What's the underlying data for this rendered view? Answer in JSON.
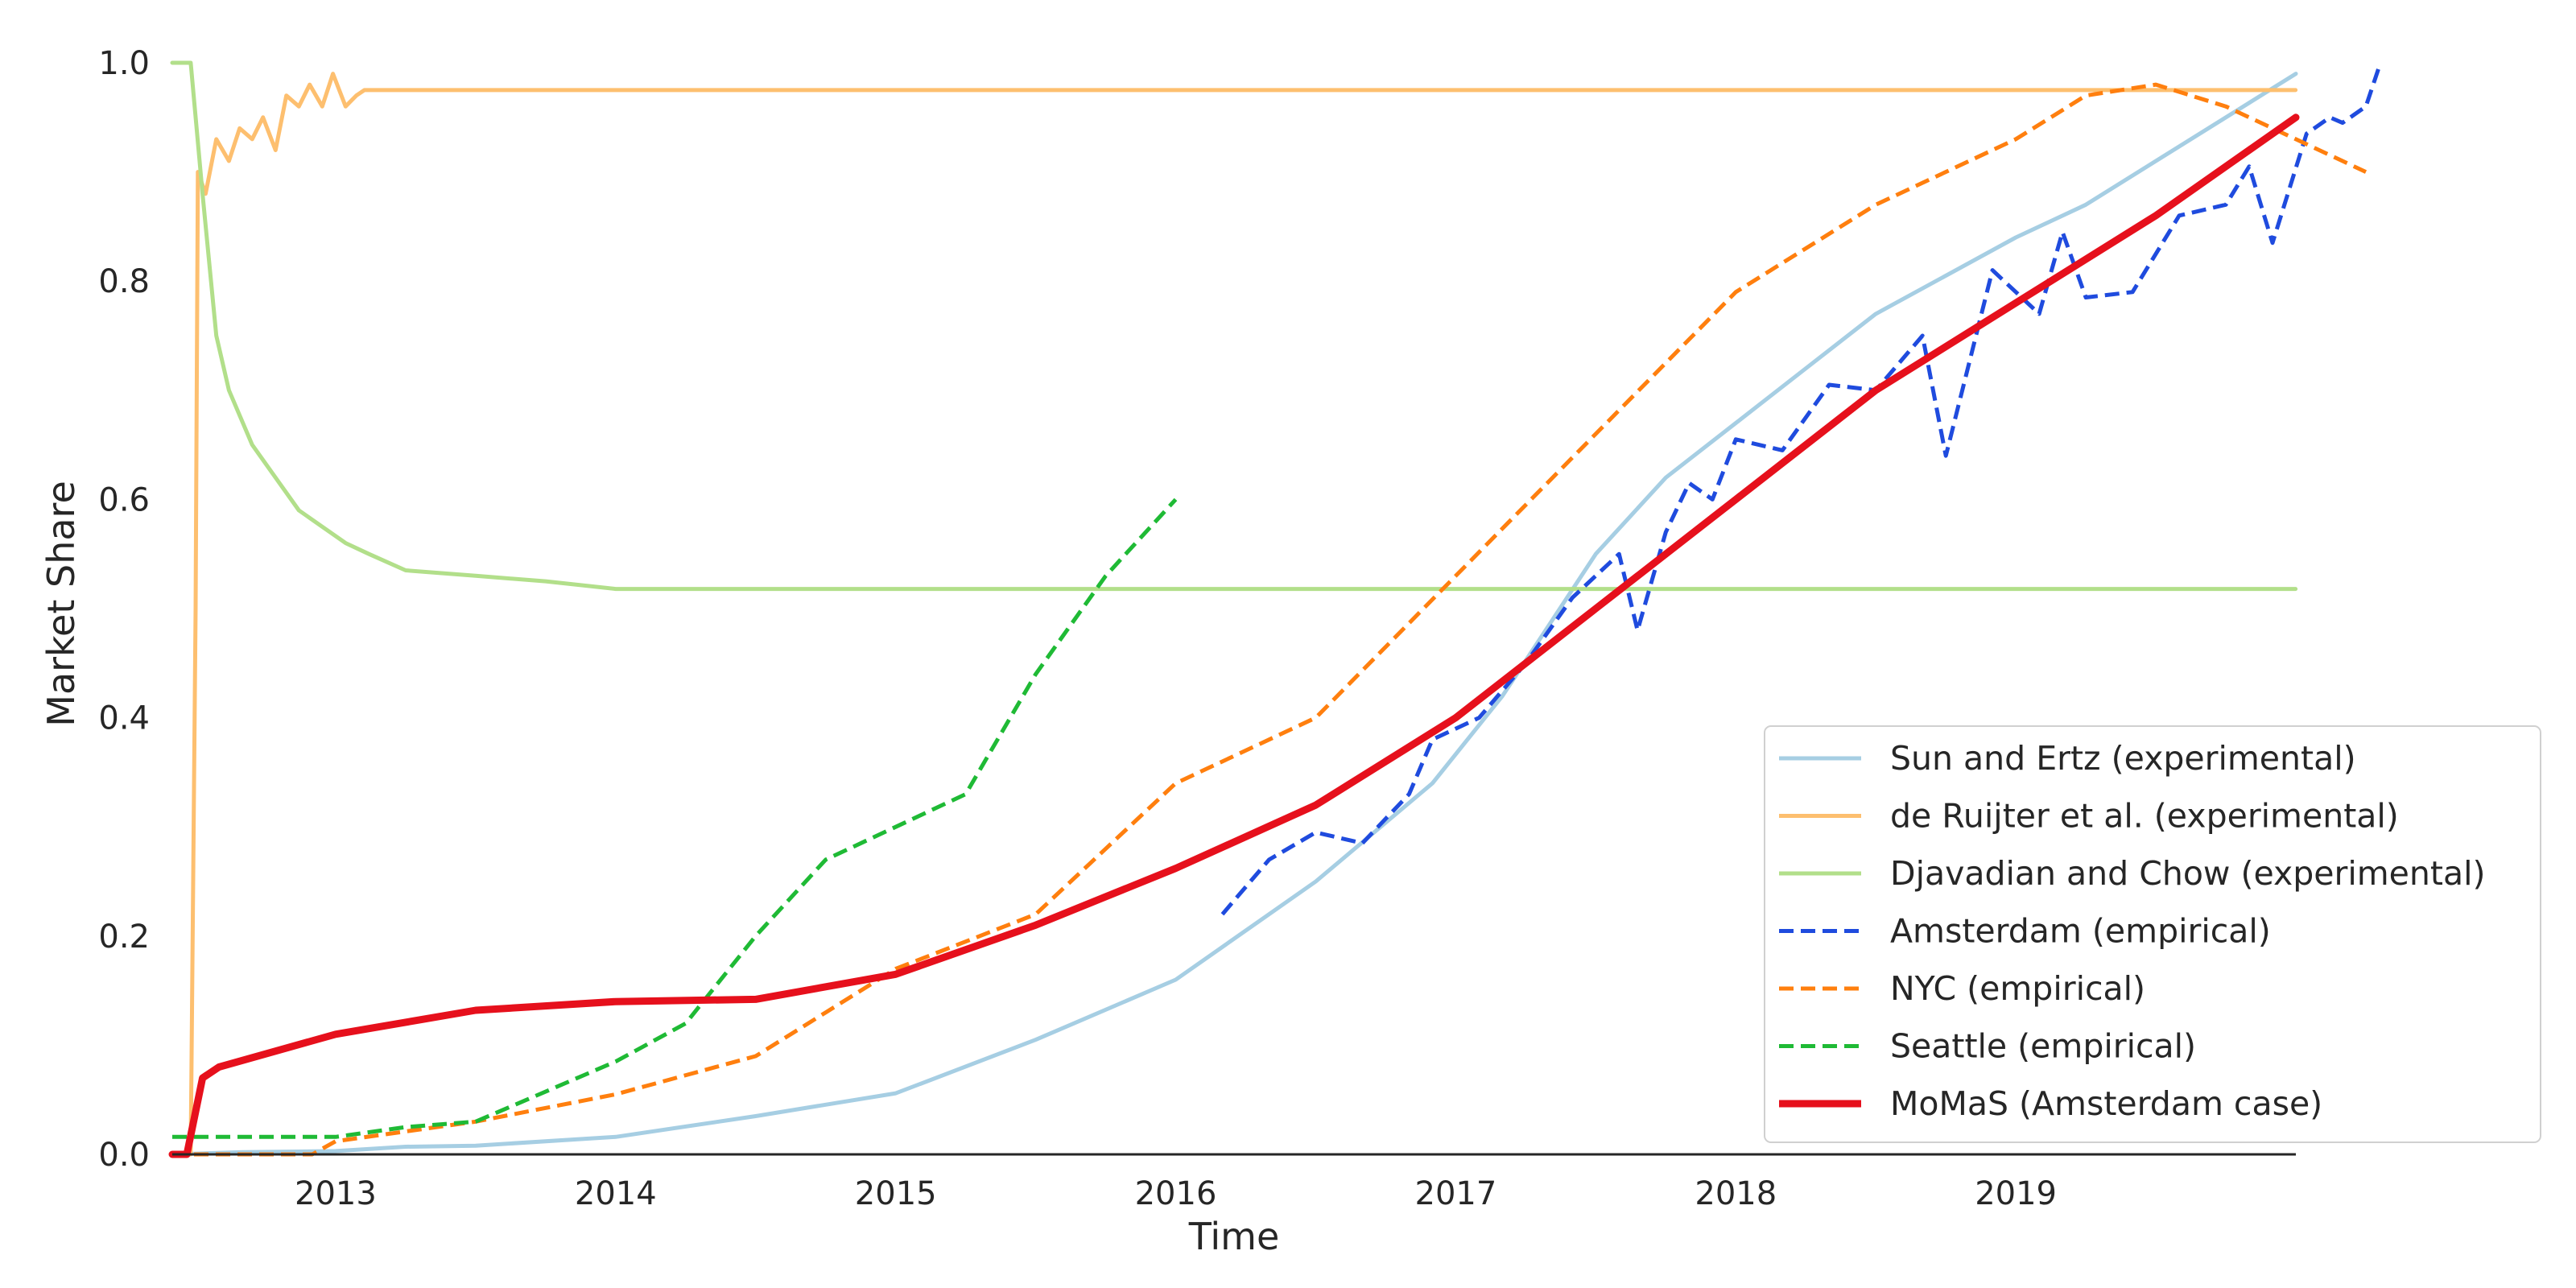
{
  "chart_data": {
    "type": "line",
    "xlabel": "Time",
    "ylabel": "Market Share",
    "xlim": [
      "2012-06",
      "2020-01"
    ],
    "ylim": [
      0,
      1.0
    ],
    "x_ticks": [
      2013,
      2014,
      2015,
      2016,
      2017,
      2018,
      2019
    ],
    "y_ticks": [
      "0.0",
      "0.2",
      "0.4",
      "0.6",
      "0.8",
      "1.0"
    ],
    "grid": false,
    "legend_position": "lower-right",
    "series": [
      {
        "name": "Sun and Ertz (experimental)",
        "color": "#a6cee3",
        "style": "solid",
        "points": [
          [
            "2012-06-01",
            0.0
          ],
          [
            "2012-09-01",
            0.002
          ],
          [
            "2013-01-01",
            0.003
          ],
          [
            "2013-04-01",
            0.007
          ],
          [
            "2013-07-01",
            0.008
          ],
          [
            "2014-01-01",
            0.016
          ],
          [
            "2014-07-01",
            0.035
          ],
          [
            "2015-01-01",
            0.056
          ],
          [
            "2015-07-01",
            0.105
          ],
          [
            "2016-01-01",
            0.16
          ],
          [
            "2016-07-01",
            0.25
          ],
          [
            "2016-12-01",
            0.34
          ],
          [
            "2017-03-01",
            0.42
          ],
          [
            "2017-07-01",
            0.55
          ],
          [
            "2017-10-01",
            0.62
          ],
          [
            "2018-01-01",
            0.67
          ],
          [
            "2018-04-01",
            0.72
          ],
          [
            "2018-07-01",
            0.77
          ],
          [
            "2019-01-01",
            0.84
          ],
          [
            "2019-04-01",
            0.87
          ],
          [
            "2019-07-01",
            0.91
          ],
          [
            "2020-01-01",
            0.99
          ]
        ]
      },
      {
        "name": "de Ruijter et al. (experimental)",
        "color": "#fdbf6f",
        "style": "solid",
        "points": [
          [
            "2012-06-01",
            0.0
          ],
          [
            "2012-06-25",
            0.0
          ],
          [
            "2012-07-01",
            0.5
          ],
          [
            "2012-07-04",
            0.9
          ],
          [
            "2012-07-14",
            0.88
          ],
          [
            "2012-07-28",
            0.93
          ],
          [
            "2012-08-14",
            0.91
          ],
          [
            "2012-08-28",
            0.94
          ],
          [
            "2012-09-14",
            0.93
          ],
          [
            "2012-09-28",
            0.95
          ],
          [
            "2012-10-14",
            0.92
          ],
          [
            "2012-10-28",
            0.97
          ],
          [
            "2012-11-14",
            0.96
          ],
          [
            "2012-11-28",
            0.98
          ],
          [
            "2012-12-14",
            0.96
          ],
          [
            "2012-12-28",
            0.99
          ],
          [
            "2013-01-14",
            0.96
          ],
          [
            "2013-01-28",
            0.97
          ],
          [
            "2013-02-08",
            0.975
          ],
          [
            "2019-12-31",
            0.975
          ]
        ]
      },
      {
        "name": "Djavadian and Chow (experimental)",
        "color": "#b2df8a",
        "style": "solid",
        "points": [
          [
            "2012-06-01",
            1.0
          ],
          [
            "2012-06-25",
            1.0
          ],
          [
            "2012-07-10",
            0.88
          ],
          [
            "2012-07-28",
            0.75
          ],
          [
            "2012-08-14",
            0.7
          ],
          [
            "2012-09-14",
            0.65
          ],
          [
            "2012-10-14",
            0.62
          ],
          [
            "2012-11-14",
            0.59
          ],
          [
            "2012-12-14",
            0.575
          ],
          [
            "2013-01-14",
            0.56
          ],
          [
            "2013-02-14",
            0.55
          ],
          [
            "2013-04-01",
            0.535
          ],
          [
            "2013-07-01",
            0.53
          ],
          [
            "2013-10-01",
            0.525
          ],
          [
            "2014-01-01",
            0.518
          ],
          [
            "2019-12-31",
            0.518
          ]
        ]
      },
      {
        "name": "Amsterdam (empirical)",
        "color": "#1f4bde",
        "style": "dashed",
        "points": [
          [
            "2016-03-01",
            0.22
          ],
          [
            "2016-05-01",
            0.27
          ],
          [
            "2016-07-01",
            0.295
          ],
          [
            "2016-09-01",
            0.285
          ],
          [
            "2016-11-01",
            0.33
          ],
          [
            "2016-12-01",
            0.38
          ],
          [
            "2017-02-01",
            0.4
          ],
          [
            "2017-04-01",
            0.45
          ],
          [
            "2017-06-01",
            0.51
          ],
          [
            "2017-08-01",
            0.55
          ],
          [
            "2017-08-25",
            0.48
          ],
          [
            "2017-10-01",
            0.57
          ],
          [
            "2017-11-01",
            0.615
          ],
          [
            "2017-12-01",
            0.6
          ],
          [
            "2018-01-01",
            0.655
          ],
          [
            "2018-03-01",
            0.645
          ],
          [
            "2018-05-01",
            0.705
          ],
          [
            "2018-07-01",
            0.7
          ],
          [
            "2018-09-01",
            0.75
          ],
          [
            "2018-10-01",
            0.64
          ],
          [
            "2018-12-01",
            0.81
          ],
          [
            "2019-02-01",
            0.77
          ],
          [
            "2019-03-01",
            0.845
          ],
          [
            "2019-04-01",
            0.785
          ],
          [
            "2019-06-01",
            0.79
          ],
          [
            "2019-08-01",
            0.86
          ],
          [
            "2019-10-01",
            0.87
          ],
          [
            "2019-11-01",
            0.905
          ],
          [
            "2019-12-01",
            0.835
          ],
          [
            "2020-01-15",
            0.935
          ],
          [
            "2020-02-15",
            0.95
          ],
          [
            "2020-03-01",
            0.945
          ],
          [
            "2020-04-01",
            0.96
          ],
          [
            "2020-04-20",
            1.0
          ]
        ]
      },
      {
        "name": "NYC (empirical)",
        "color": "#ff7f0e",
        "style": "dashed",
        "points": [
          [
            "2012-06-01",
            0.0
          ],
          [
            "2012-12-01",
            0.0
          ],
          [
            "2013-01-01",
            0.012
          ],
          [
            "2013-07-01",
            0.03
          ],
          [
            "2014-01-01",
            0.055
          ],
          [
            "2014-07-01",
            0.09
          ],
          [
            "2014-10-01",
            0.13
          ],
          [
            "2015-01-01",
            0.17
          ],
          [
            "2015-07-01",
            0.22
          ],
          [
            "2015-10-01",
            0.28
          ],
          [
            "2016-01-01",
            0.34
          ],
          [
            "2016-07-01",
            0.4
          ],
          [
            "2017-01-01",
            0.53
          ],
          [
            "2017-07-01",
            0.66
          ],
          [
            "2018-01-01",
            0.79
          ],
          [
            "2018-07-01",
            0.87
          ],
          [
            "2019-01-01",
            0.93
          ],
          [
            "2019-04-01",
            0.97
          ],
          [
            "2019-07-01",
            0.98
          ],
          [
            "2019-10-01",
            0.96
          ],
          [
            "2020-01-01",
            0.93
          ],
          [
            "2020-04-01",
            0.9
          ]
        ]
      },
      {
        "name": "Seattle (empirical)",
        "color": "#1fba35",
        "style": "dashed",
        "points": [
          [
            "2012-06-01",
            0.016
          ],
          [
            "2013-01-01",
            0.016
          ],
          [
            "2013-04-01",
            0.025
          ],
          [
            "2013-07-01",
            0.03
          ],
          [
            "2014-01-01",
            0.085
          ],
          [
            "2014-04-01",
            0.12
          ],
          [
            "2014-07-01",
            0.2
          ],
          [
            "2014-10-01",
            0.27
          ],
          [
            "2015-01-01",
            0.3
          ],
          [
            "2015-04-01",
            0.33
          ],
          [
            "2015-07-01",
            0.44
          ],
          [
            "2015-10-01",
            0.53
          ],
          [
            "2016-01-01",
            0.6
          ]
        ]
      },
      {
        "name": "MoMaS (Amsterdam case)",
        "color": "#e6101c",
        "style": "solid",
        "width": "thick",
        "points": [
          [
            "2012-06-01",
            0.0
          ],
          [
            "2012-06-20",
            0.0
          ],
          [
            "2012-07-10",
            0.07
          ],
          [
            "2012-08-01",
            0.08
          ],
          [
            "2013-01-01",
            0.11
          ],
          [
            "2013-07-01",
            0.132
          ],
          [
            "2014-01-01",
            0.14
          ],
          [
            "2014-07-01",
            0.142
          ],
          [
            "2015-01-01",
            0.165
          ],
          [
            "2015-07-01",
            0.21
          ],
          [
            "2016-01-01",
            0.262
          ],
          [
            "2016-07-01",
            0.32
          ],
          [
            "2017-01-01",
            0.4
          ],
          [
            "2017-07-01",
            0.5
          ],
          [
            "2018-01-01",
            0.6
          ],
          [
            "2018-07-01",
            0.7
          ],
          [
            "2019-01-01",
            0.78
          ],
          [
            "2019-07-01",
            0.86
          ],
          [
            "2020-01-01",
            0.95
          ]
        ]
      }
    ]
  }
}
